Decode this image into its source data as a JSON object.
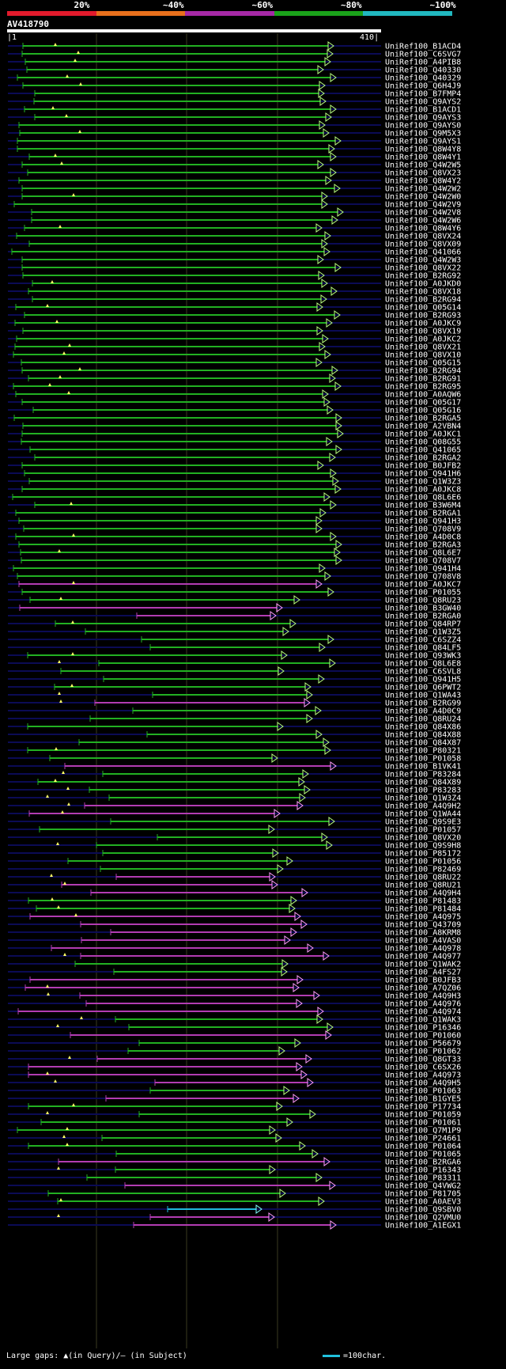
{
  "legend": {
    "labels": [
      "20%",
      "~40%",
      "~60%",
      "~80%",
      "~100%"
    ],
    "colors": [
      "#e21a2c",
      "#e8701c",
      "#a629a6",
      "#1aa21a",
      "#21b8c0"
    ]
  },
  "query": {
    "name": "AV418790",
    "start": "1",
    "end": "410"
  },
  "hits": [
    {
      "label": "UniRef100_B1ACD4",
      "c": "g"
    },
    {
      "label": "UniRef100_C6SVG7",
      "c": "g"
    },
    {
      "label": "UniRef100_A4PIB8",
      "c": "g"
    },
    {
      "label": "UniRef100_Q40330",
      "c": "g"
    },
    {
      "label": "UniRef100_Q40329",
      "c": "g"
    },
    {
      "label": "UniRef100_Q6H4J9",
      "c": "g"
    },
    {
      "label": "UniRef100_B7FMP4",
      "c": "g"
    },
    {
      "label": "UniRef100_Q9AYS2",
      "c": "g"
    },
    {
      "label": "UniRef100_B1ACD1",
      "c": "g"
    },
    {
      "label": "UniRef100_Q9AYS3",
      "c": "g"
    },
    {
      "label": "UniRef100_Q9AYS0",
      "c": "g"
    },
    {
      "label": "UniRef100_Q9M5X3",
      "c": "g"
    },
    {
      "label": "UniRef100_Q9AYS1",
      "c": "g"
    },
    {
      "label": "UniRef100_Q8W4Y8",
      "c": "g"
    },
    {
      "label": "UniRef100_Q8W4Y1",
      "c": "g"
    },
    {
      "label": "UniRef100_Q4W2W5",
      "c": "g"
    },
    {
      "label": "UniRef100_Q8VX23",
      "c": "g"
    },
    {
      "label": "UniRef100_Q8W4Y2",
      "c": "g"
    },
    {
      "label": "UniRef100_Q4W2W2",
      "c": "g"
    },
    {
      "label": "UniRef100_Q4W2W0",
      "c": "g"
    },
    {
      "label": "UniRef100_Q4W2V9",
      "c": "g"
    },
    {
      "label": "UniRef100_Q4W2V8",
      "c": "g"
    },
    {
      "label": "UniRef100_Q4W2W6",
      "c": "g"
    },
    {
      "label": "UniRef100_Q8W4Y6",
      "c": "g"
    },
    {
      "label": "UniRef100_Q8VX24",
      "c": "g"
    },
    {
      "label": "UniRef100_Q8VX09",
      "c": "g"
    },
    {
      "label": "UniRef100_Q41066",
      "c": "g"
    },
    {
      "label": "UniRef100_Q4W2W3",
      "c": "g"
    },
    {
      "label": "UniRef100_Q8VX22",
      "c": "g"
    },
    {
      "label": "UniRef100_B2RG92",
      "c": "g"
    },
    {
      "label": "UniRef100_A0JKD0",
      "c": "g"
    },
    {
      "label": "UniRef100_Q8VX18",
      "c": "g"
    },
    {
      "label": "UniRef100_B2RG94",
      "c": "g"
    },
    {
      "label": "UniRef100_Q05G14",
      "c": "g"
    },
    {
      "label": "UniRef100_B2RG93",
      "c": "g"
    },
    {
      "label": "UniRef100_A0JKC9",
      "c": "g"
    },
    {
      "label": "UniRef100_Q8VX19",
      "c": "g"
    },
    {
      "label": "UniRef100_A0JKC2",
      "c": "g"
    },
    {
      "label": "UniRef100_Q8VX21",
      "c": "g"
    },
    {
      "label": "UniRef100_Q8VX10",
      "c": "g"
    },
    {
      "label": "UniRef100_Q05G15",
      "c": "g"
    },
    {
      "label": "UniRef100_B2RG94",
      "c": "g"
    },
    {
      "label": "UniRef100_B2RG91",
      "c": "g"
    },
    {
      "label": "UniRef100_B2RG95",
      "c": "g"
    },
    {
      "label": "UniRef100_A0AQW6",
      "c": "g"
    },
    {
      "label": "UniRef100_Q05G17",
      "c": "g"
    },
    {
      "label": "UniRef100_Q05G16",
      "c": "g"
    },
    {
      "label": "UniRef100_B2RGA5",
      "c": "g"
    },
    {
      "label": "UniRef100_A2VBN4",
      "c": "g"
    },
    {
      "label": "UniRef100_A0JKC1",
      "c": "g"
    },
    {
      "label": "UniRef100_Q08G55",
      "c": "g"
    },
    {
      "label": "UniRef100_Q41065",
      "c": "g"
    },
    {
      "label": "UniRef100_B2RGA2",
      "c": "g"
    },
    {
      "label": "UniRef100_B0JFB2",
      "c": "g"
    },
    {
      "label": "UniRef100_Q941H6",
      "c": "g"
    },
    {
      "label": "UniRef100_Q1W3Z3",
      "c": "g"
    },
    {
      "label": "UniRef100_A0JKC8",
      "c": "g"
    },
    {
      "label": "UniRef100_Q8L6E6",
      "c": "g"
    },
    {
      "label": "UniRef100_B3W6M4",
      "c": "g"
    },
    {
      "label": "UniRef100_B2RGA1",
      "c": "g"
    },
    {
      "label": "UniRef100_Q941H3",
      "c": "g"
    },
    {
      "label": "UniRef100_Q708V9",
      "c": "g"
    },
    {
      "label": "UniRef100_A4D0C8",
      "c": "g"
    },
    {
      "label": "UniRef100_B2RGA3",
      "c": "g"
    },
    {
      "label": "UniRef100_Q8L6E7",
      "c": "g"
    },
    {
      "label": "UniRef100_Q708V7",
      "c": "g"
    },
    {
      "label": "UniRef100_Q941H4",
      "c": "g"
    },
    {
      "label": "UniRef100_Q708V8",
      "c": "g"
    },
    {
      "label": "UniRef100_A0JKC7",
      "c": "m"
    },
    {
      "label": "UniRef100_P01055",
      "c": "g"
    },
    {
      "label": "UniRef100_Q8RU23",
      "c": "g"
    },
    {
      "label": "UniRef100_B3GW40",
      "c": "m"
    },
    {
      "label": "UniRef100_B2RGA0",
      "c": "m"
    },
    {
      "label": "UniRef100_Q84RP7",
      "c": "g"
    },
    {
      "label": "UniRef100_Q1W3Z5",
      "c": "g"
    },
    {
      "label": "UniRef100_C6SZZ4",
      "c": "g"
    },
    {
      "label": "UniRef100_Q84LF5",
      "c": "g"
    },
    {
      "label": "UniRef100_Q93WK3",
      "c": "g"
    },
    {
      "label": "UniRef100_Q8L6E8",
      "c": "g"
    },
    {
      "label": "UniRef100_C6SVL8",
      "c": "g"
    },
    {
      "label": "UniRef100_Q941H5",
      "c": "g"
    },
    {
      "label": "UniRef100_Q6PWT2",
      "c": "g"
    },
    {
      "label": "UniRef100_Q1WA43",
      "c": "g"
    },
    {
      "label": "UniRef100_B2RG99",
      "c": "m"
    },
    {
      "label": "UniRef100_A4D0C9",
      "c": "g"
    },
    {
      "label": "UniRef100_Q8RU24",
      "c": "g"
    },
    {
      "label": "UniRef100_Q84X86",
      "c": "g"
    },
    {
      "label": "UniRef100_Q84X88",
      "c": "g"
    },
    {
      "label": "UniRef100_Q84X87",
      "c": "g"
    },
    {
      "label": "UniRef100_P80321",
      "c": "g"
    },
    {
      "label": "UniRef100_P01058",
      "c": "g"
    },
    {
      "label": "UniRef100_B1VK41",
      "c": "m"
    },
    {
      "label": "UniRef100_P83284",
      "c": "g"
    },
    {
      "label": "UniRef100_Q84X89",
      "c": "g"
    },
    {
      "label": "UniRef100_P83283",
      "c": "g"
    },
    {
      "label": "UniRef100_Q1W3Z4",
      "c": "g"
    },
    {
      "label": "UniRef100_A4Q9H2",
      "c": "m"
    },
    {
      "label": "UniRef100_Q1WA44",
      "c": "m"
    },
    {
      "label": "UniRef100_Q9S9E3",
      "c": "g"
    },
    {
      "label": "UniRef100_P01057",
      "c": "g"
    },
    {
      "label": "UniRef100_Q8VX20",
      "c": "g"
    },
    {
      "label": "UniRef100_Q9S9H8",
      "c": "g"
    },
    {
      "label": "UniRef100_P85172",
      "c": "g"
    },
    {
      "label": "UniRef100_P01056",
      "c": "g"
    },
    {
      "label": "UniRef100_P82469",
      "c": "g"
    },
    {
      "label": "UniRef100_Q8RU22",
      "c": "m"
    },
    {
      "label": "UniRef100_Q8RU21",
      "c": "m"
    },
    {
      "label": "UniRef100_A4Q9H4",
      "c": "m"
    },
    {
      "label": "UniRef100_P81483",
      "c": "g"
    },
    {
      "label": "UniRef100_P81484",
      "c": "g"
    },
    {
      "label": "UniRef100_A4Q975",
      "c": "m"
    },
    {
      "label": "UniRef100_Q43709",
      "c": "m"
    },
    {
      "label": "UniRef100_A8KRM8",
      "c": "m"
    },
    {
      "label": "UniRef100_A4VAS0",
      "c": "m"
    },
    {
      "label": "UniRef100_A4Q978",
      "c": "m"
    },
    {
      "label": "UniRef100_A4Q977",
      "c": "m"
    },
    {
      "label": "UniRef100_Q1WAK2",
      "c": "g"
    },
    {
      "label": "UniRef100_A4FS27",
      "c": "g"
    },
    {
      "label": "UniRef100_B0JFB3",
      "c": "m"
    },
    {
      "label": "UniRef100_A7QZ06",
      "c": "m"
    },
    {
      "label": "UniRef100_A4Q9H3",
      "c": "m"
    },
    {
      "label": "UniRef100_A4Q976",
      "c": "m"
    },
    {
      "label": "UniRef100_A4Q974",
      "c": "m"
    },
    {
      "label": "UniRef100_Q1WAK3",
      "c": "g"
    },
    {
      "label": "UniRef100_P16346",
      "c": "g"
    },
    {
      "label": "UniRef100_P01060",
      "c": "m"
    },
    {
      "label": "UniRef100_P56679",
      "c": "g"
    },
    {
      "label": "UniRef100_P01062",
      "c": "g"
    },
    {
      "label": "UniRef100_Q8GT33",
      "c": "m"
    },
    {
      "label": "UniRef100_C6SX26",
      "c": "m"
    },
    {
      "label": "UniRef100_A4Q973",
      "c": "m"
    },
    {
      "label": "UniRef100_A4Q9H5",
      "c": "m"
    },
    {
      "label": "UniRef100_P01063",
      "c": "g"
    },
    {
      "label": "UniRef100_B1GYE5",
      "c": "m"
    },
    {
      "label": "UniRef100_P17734",
      "c": "g"
    },
    {
      "label": "UniRef100_P01059",
      "c": "g"
    },
    {
      "label": "UniRef100_P01061",
      "c": "g"
    },
    {
      "label": "UniRef100_Q7M1P9",
      "c": "g"
    },
    {
      "label": "UniRef100_P24661",
      "c": "g"
    },
    {
      "label": "UniRef100_P01064",
      "c": "g"
    },
    {
      "label": "UniRef100_P01065",
      "c": "g"
    },
    {
      "label": "UniRef100_B2RGA6",
      "c": "m"
    },
    {
      "label": "UniRef100_P16343",
      "c": "g"
    },
    {
      "label": "UniRef100_P83311",
      "c": "g"
    },
    {
      "label": "UniRef100_Q4VWG2",
      "c": "m"
    },
    {
      "label": "UniRef100_P81705",
      "c": "g"
    },
    {
      "label": "UniRef100_A0AEV3",
      "c": "g"
    },
    {
      "label": "UniRef100_Q9SBV0",
      "c": "c"
    },
    {
      "label": "UniRef100_Q2VMU0",
      "c": "m"
    },
    {
      "label": "UniRef100_A1EGX1",
      "c": "m"
    }
  ],
  "footer": {
    "text": "Large gaps: ▲(in Query)/— (in Subject)",
    "scale_label": "=100char."
  }
}
